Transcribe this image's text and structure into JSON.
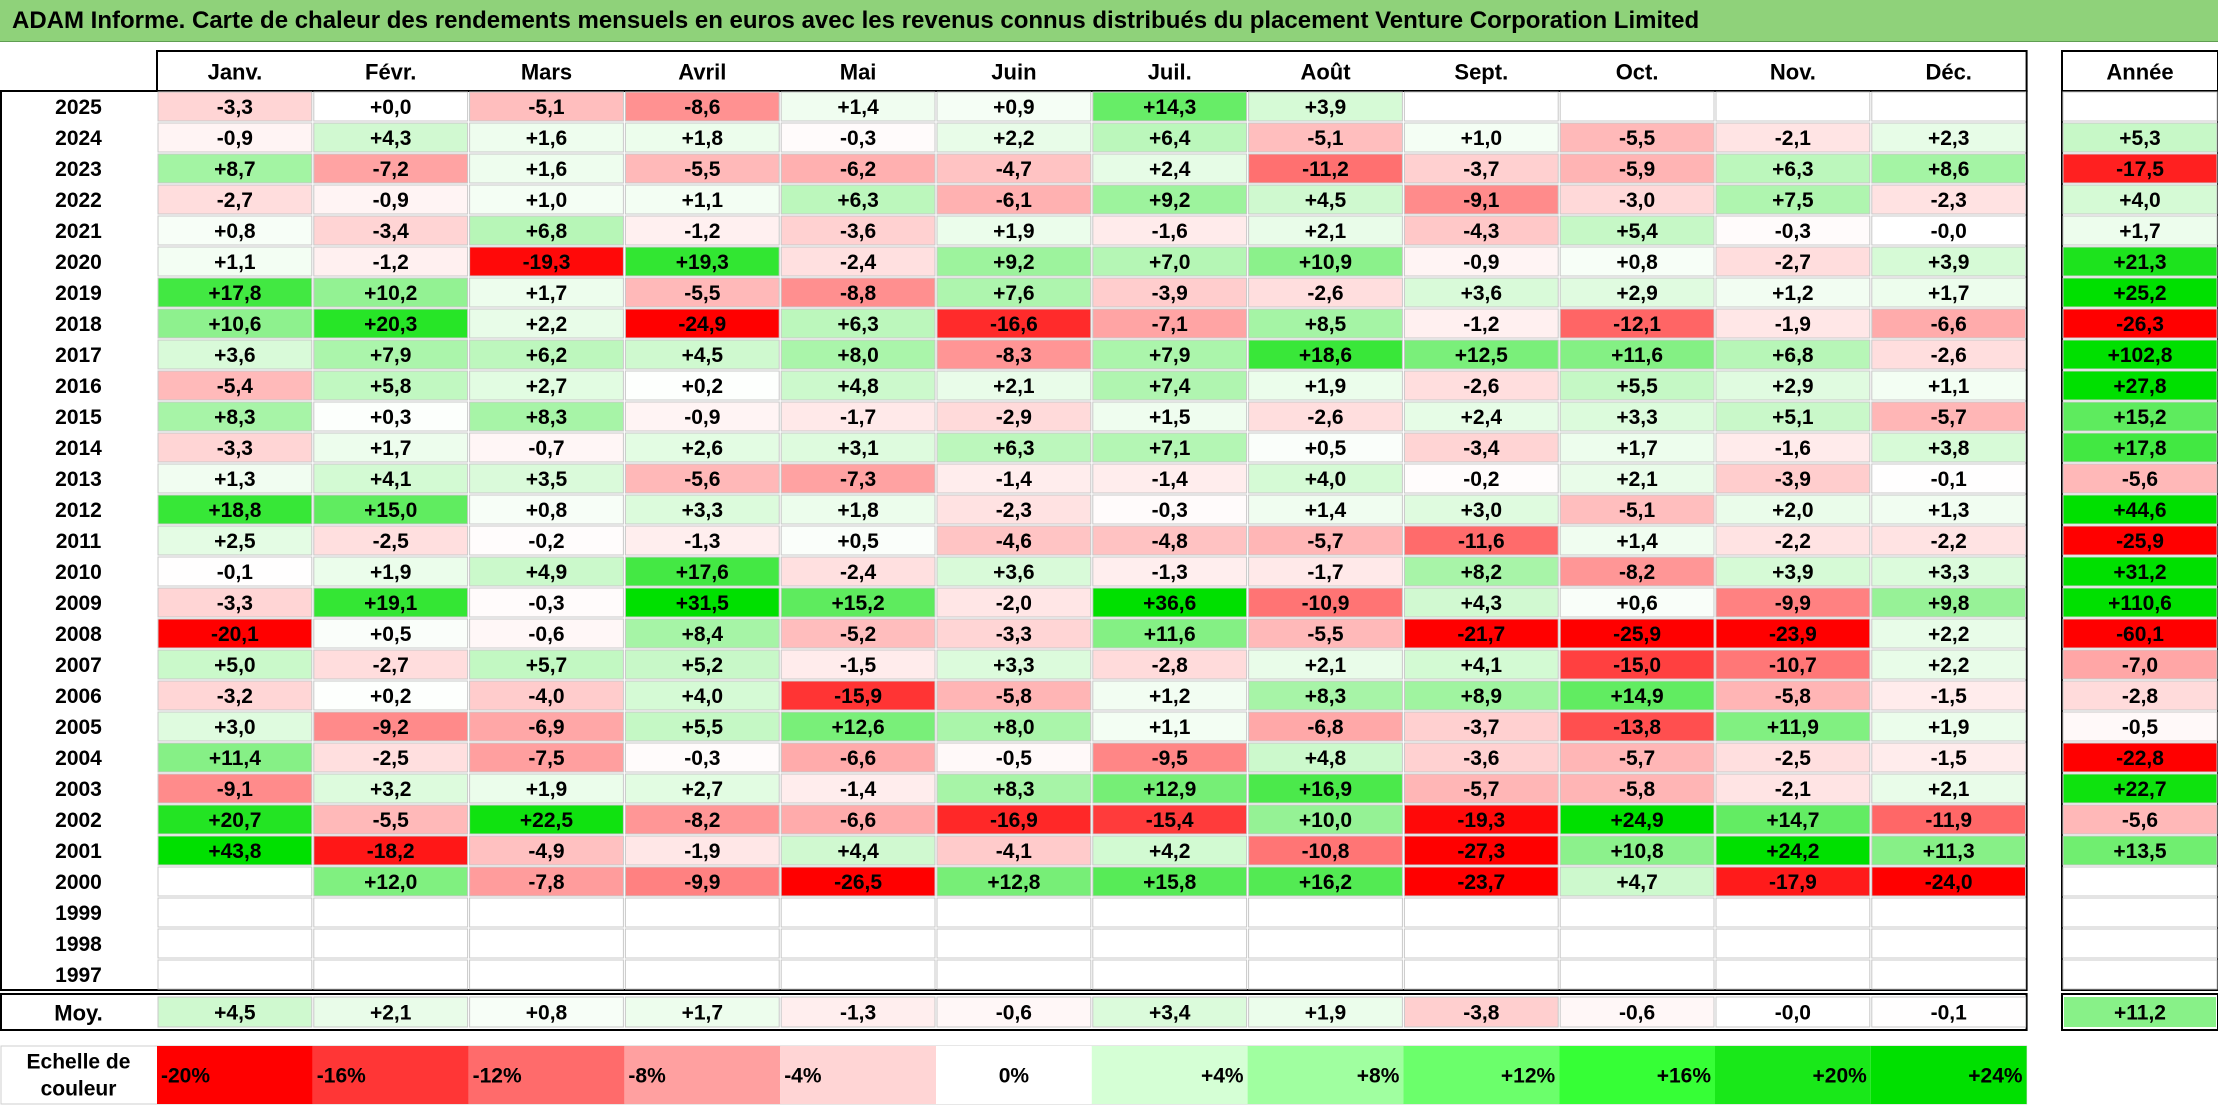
{
  "title": "ADAM Informe. Carte de chaleur des rendements mensuels en euros avec les revenus connus distribués du placement Venture Corporation Limited",
  "chart_data": {
    "type": "heatmap",
    "title": "ADAM Informe. Carte de chaleur des rendements mensuels en euros avec les revenus connus distribués du placement Venture Corporation Limited",
    "months": [
      "Janv.",
      "Févr.",
      "Mars",
      "Avril",
      "Mai",
      "Juin",
      "Juil.",
      "Août",
      "Sept.",
      "Oct.",
      "Nov.",
      "Déc."
    ],
    "annual_header": "Année",
    "rows": [
      {
        "year": "2025",
        "values": [
          "-3,3",
          "+0,0",
          "-5,1",
          "-8,6",
          "+1,4",
          "+0,9",
          "+14,3",
          "+3,9",
          "",
          "",
          "",
          ""
        ],
        "annual": ""
      },
      {
        "year": "2024",
        "values": [
          "-0,9",
          "+4,3",
          "+1,6",
          "+1,8",
          "-0,3",
          "+2,2",
          "+6,4",
          "-5,1",
          "+1,0",
          "-5,5",
          "-2,1",
          "+2,3"
        ],
        "annual": "+5,3"
      },
      {
        "year": "2023",
        "values": [
          "+8,7",
          "-7,2",
          "+1,6",
          "-5,5",
          "-6,2",
          "-4,7",
          "+2,4",
          "-11,2",
          "-3,7",
          "-5,9",
          "+6,3",
          "+8,6"
        ],
        "annual": "-17,5"
      },
      {
        "year": "2022",
        "values": [
          "-2,7",
          "-0,9",
          "+1,0",
          "+1,1",
          "+6,3",
          "-6,1",
          "+9,2",
          "+4,5",
          "-9,1",
          "-3,0",
          "+7,5",
          "-2,3"
        ],
        "annual": "+4,0"
      },
      {
        "year": "2021",
        "values": [
          "+0,8",
          "-3,4",
          "+6,8",
          "-1,2",
          "-3,6",
          "+1,9",
          "-1,6",
          "+2,1",
          "-4,3",
          "+5,4",
          "-0,3",
          "-0,0"
        ],
        "annual": "+1,7"
      },
      {
        "year": "2020",
        "values": [
          "+1,1",
          "-1,2",
          "-19,3",
          "+19,3",
          "-2,4",
          "+9,2",
          "+7,0",
          "+10,9",
          "-0,9",
          "+0,8",
          "-2,7",
          "+3,9"
        ],
        "annual": "+21,3"
      },
      {
        "year": "2019",
        "values": [
          "+17,8",
          "+10,2",
          "+1,7",
          "-5,5",
          "-8,8",
          "+7,6",
          "-3,9",
          "-2,6",
          "+3,6",
          "+2,9",
          "+1,2",
          "+1,7"
        ],
        "annual": "+25,2"
      },
      {
        "year": "2018",
        "values": [
          "+10,6",
          "+20,3",
          "+2,2",
          "-24,9",
          "+6,3",
          "-16,6",
          "-7,1",
          "+8,5",
          "-1,2",
          "-12,1",
          "-1,9",
          "-6,6"
        ],
        "annual": "-26,3"
      },
      {
        "year": "2017",
        "values": [
          "+3,6",
          "+7,9",
          "+6,2",
          "+4,5",
          "+8,0",
          "-8,3",
          "+7,9",
          "+18,6",
          "+12,5",
          "+11,6",
          "+6,8",
          "-2,6"
        ],
        "annual": "+102,8"
      },
      {
        "year": "2016",
        "values": [
          "-5,4",
          "+5,8",
          "+2,7",
          "+0,2",
          "+4,8",
          "+2,1",
          "+7,4",
          "+1,9",
          "-2,6",
          "+5,5",
          "+2,9",
          "+1,1"
        ],
        "annual": "+27,8"
      },
      {
        "year": "2015",
        "values": [
          "+8,3",
          "+0,3",
          "+8,3",
          "-0,9",
          "-1,7",
          "-2,9",
          "+1,5",
          "-2,6",
          "+2,4",
          "+3,3",
          "+5,1",
          "-5,7"
        ],
        "annual": "+15,2"
      },
      {
        "year": "2014",
        "values": [
          "-3,3",
          "+1,7",
          "-0,7",
          "+2,6",
          "+3,1",
          "+6,3",
          "+7,1",
          "+0,5",
          "-3,4",
          "+1,7",
          "-1,6",
          "+3,8"
        ],
        "annual": "+17,8"
      },
      {
        "year": "2013",
        "values": [
          "+1,3",
          "+4,1",
          "+3,5",
          "-5,6",
          "-7,3",
          "-1,4",
          "-1,4",
          "+4,0",
          "-0,2",
          "+2,1",
          "-3,9",
          "-0,1"
        ],
        "annual": "-5,6"
      },
      {
        "year": "2012",
        "values": [
          "+18,8",
          "+15,0",
          "+0,8",
          "+3,3",
          "+1,8",
          "-2,3",
          "-0,3",
          "+1,4",
          "+3,0",
          "-5,1",
          "+2,0",
          "+1,3"
        ],
        "annual": "+44,6"
      },
      {
        "year": "2011",
        "values": [
          "+2,5",
          "-2,5",
          "-0,2",
          "-1,3",
          "+0,5",
          "-4,6",
          "-4,8",
          "-5,7",
          "-11,6",
          "+1,4",
          "-2,2",
          "-2,2"
        ],
        "annual": "-25,9"
      },
      {
        "year": "2010",
        "values": [
          "-0,1",
          "+1,9",
          "+4,9",
          "+17,6",
          "-2,4",
          "+3,6",
          "-1,3",
          "-1,7",
          "+8,2",
          "-8,2",
          "+3,9",
          "+3,3"
        ],
        "annual": "+31,2"
      },
      {
        "year": "2009",
        "values": [
          "-3,3",
          "+19,1",
          "-0,3",
          "+31,5",
          "+15,2",
          "-2,0",
          "+36,6",
          "-10,9",
          "+4,3",
          "+0,6",
          "-9,9",
          "+9,8"
        ],
        "annual": "+110,6"
      },
      {
        "year": "2008",
        "values": [
          "-20,1",
          "+0,5",
          "-0,6",
          "+8,4",
          "-5,2",
          "-3,3",
          "+11,6",
          "-5,5",
          "-21,7",
          "-25,9",
          "-23,9",
          "+2,2"
        ],
        "annual": "-60,1"
      },
      {
        "year": "2007",
        "values": [
          "+5,0",
          "-2,7",
          "+5,7",
          "+5,2",
          "-1,5",
          "+3,3",
          "-2,8",
          "+2,1",
          "+4,1",
          "-15,0",
          "-10,7",
          "+2,2"
        ],
        "annual": "-7,0"
      },
      {
        "year": "2006",
        "values": [
          "-3,2",
          "+0,2",
          "-4,0",
          "+4,0",
          "-15,9",
          "-5,8",
          "+1,2",
          "+8,3",
          "+8,9",
          "+14,9",
          "-5,8",
          "-1,5"
        ],
        "annual": "-2,8"
      },
      {
        "year": "2005",
        "values": [
          "+3,0",
          "-9,2",
          "-6,9",
          "+5,5",
          "+12,6",
          "+8,0",
          "+1,1",
          "-6,8",
          "-3,7",
          "-13,8",
          "+11,9",
          "+1,9"
        ],
        "annual": "-0,5"
      },
      {
        "year": "2004",
        "values": [
          "+11,4",
          "-2,5",
          "-7,5",
          "-0,3",
          "-6,6",
          "-0,5",
          "-9,5",
          "+4,8",
          "-3,6",
          "-5,7",
          "-2,5",
          "-1,5"
        ],
        "annual": "-22,8"
      },
      {
        "year": "2003",
        "values": [
          "-9,1",
          "+3,2",
          "+1,9",
          "+2,7",
          "-1,4",
          "+8,3",
          "+12,9",
          "+16,9",
          "-5,7",
          "-5,8",
          "-2,1",
          "+2,1"
        ],
        "annual": "+22,7"
      },
      {
        "year": "2002",
        "values": [
          "+20,7",
          "-5,5",
          "+22,5",
          "-8,2",
          "-6,6",
          "-16,9",
          "-15,4",
          "+10,0",
          "-19,3",
          "+24,9",
          "+14,7",
          "-11,9"
        ],
        "annual": "-5,6"
      },
      {
        "year": "2001",
        "values": [
          "+43,8",
          "-18,2",
          "-4,9",
          "-1,9",
          "+4,4",
          "-4,1",
          "+4,2",
          "-10,8",
          "-27,3",
          "+10,8",
          "+24,2",
          "+11,3"
        ],
        "annual": "+13,5"
      },
      {
        "year": "2000",
        "values": [
          "",
          "+12,0",
          "-7,8",
          "-9,9",
          "-26,5",
          "+12,8",
          "+15,8",
          "+16,2",
          "-23,7",
          "+4,7",
          "-17,9",
          "-24,0"
        ],
        "annual": ""
      },
      {
        "year": "1999",
        "values": [
          "",
          "",
          "",
          "",
          "",
          "",
          "",
          "",
          "",
          "",
          "",
          ""
        ],
        "annual": ""
      },
      {
        "year": "1998",
        "values": [
          "",
          "",
          "",
          "",
          "",
          "",
          "",
          "",
          "",
          "",
          "",
          ""
        ],
        "annual": ""
      },
      {
        "year": "1997",
        "values": [
          "",
          "",
          "",
          "",
          "",
          "",
          "",
          "",
          "",
          "",
          "",
          ""
        ],
        "annual": ""
      }
    ],
    "average": {
      "label": "Moy.",
      "values": [
        "+4,5",
        "+2,1",
        "+0,8",
        "+1,7",
        "-1,3",
        "-0,6",
        "+3,4",
        "+1,9",
        "-3,8",
        "-0,6",
        "-0,0",
        "-0,1"
      ],
      "annual": "+11,2"
    },
    "scale": {
      "label_line1": "Echelle de",
      "label_line2": "couleur",
      "steps": [
        {
          "label": "-20%",
          "color": "#ff0000"
        },
        {
          "label": "-16%",
          "color": "#ff3636"
        },
        {
          "label": "-12%",
          "color": "#ff6b6b"
        },
        {
          "label": "-8%",
          "color": "#ffa0a0"
        },
        {
          "label": "-4%",
          "color": "#ffd5d5"
        },
        {
          "label": "0%",
          "color": "#ffffff"
        },
        {
          "label": "+4%",
          "color": "#d5ffd5"
        },
        {
          "label": "+8%",
          "color": "#a0ffa0"
        },
        {
          "label": "+12%",
          "color": "#6bff6b"
        },
        {
          "label": "+16%",
          "color": "#36ff36"
        },
        {
          "label": "+20%",
          "color": "#19e819"
        },
        {
          "label": "+24%",
          "color": "#00e000"
        }
      ]
    },
    "color_range": [
      -20,
      24
    ],
    "colors": {
      "negative_max": "#ff0000",
      "neutral": "#ffffff",
      "positive_max": "#00e000",
      "title_bg": "#8fd27a"
    }
  }
}
